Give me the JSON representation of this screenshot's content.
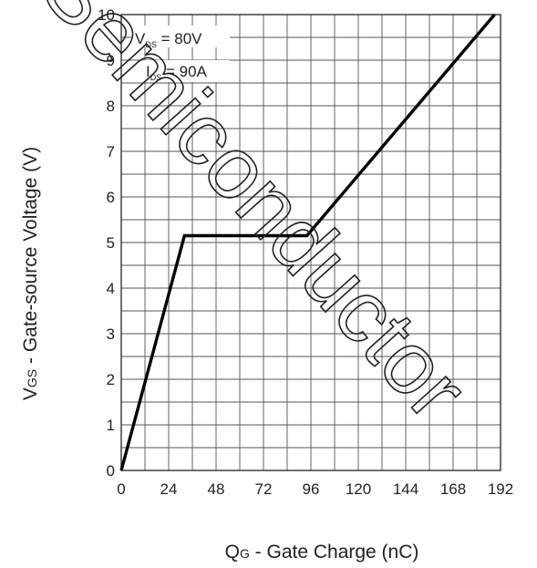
{
  "chart_data": {
    "type": "line",
    "xlabel_main": "Q",
    "xlabel_sub": "G",
    "xlabel_rest": " - Gate Charge (nC)",
    "ylabel_main": "V",
    "ylabel_sub": "GS",
    "ylabel_rest": " - Gate-source Voltage (V)",
    "xlim": [
      0,
      192
    ],
    "ylim": [
      0,
      10
    ],
    "x_ticks": [
      "0",
      "24",
      "48",
      "72",
      "96",
      "120",
      "144",
      "168",
      "192"
    ],
    "y_ticks": [
      "0",
      "1",
      "2",
      "3",
      "4",
      "5",
      "6",
      "7",
      "8",
      "9",
      "10"
    ],
    "grid": true,
    "series": [
      {
        "x": [
          0,
          32,
          94,
          189
        ],
        "y": [
          0,
          5.15,
          5.15,
          10
        ]
      }
    ],
    "annotations": [
      {
        "main": "V",
        "sub": "DS",
        "rest": " = 80V"
      },
      {
        "main": "I",
        "sub": "DS",
        "rest": " = 90A"
      }
    ],
    "line_color": "#000000",
    "grid_color": "#555555"
  },
  "watermark": "Semiconductor"
}
